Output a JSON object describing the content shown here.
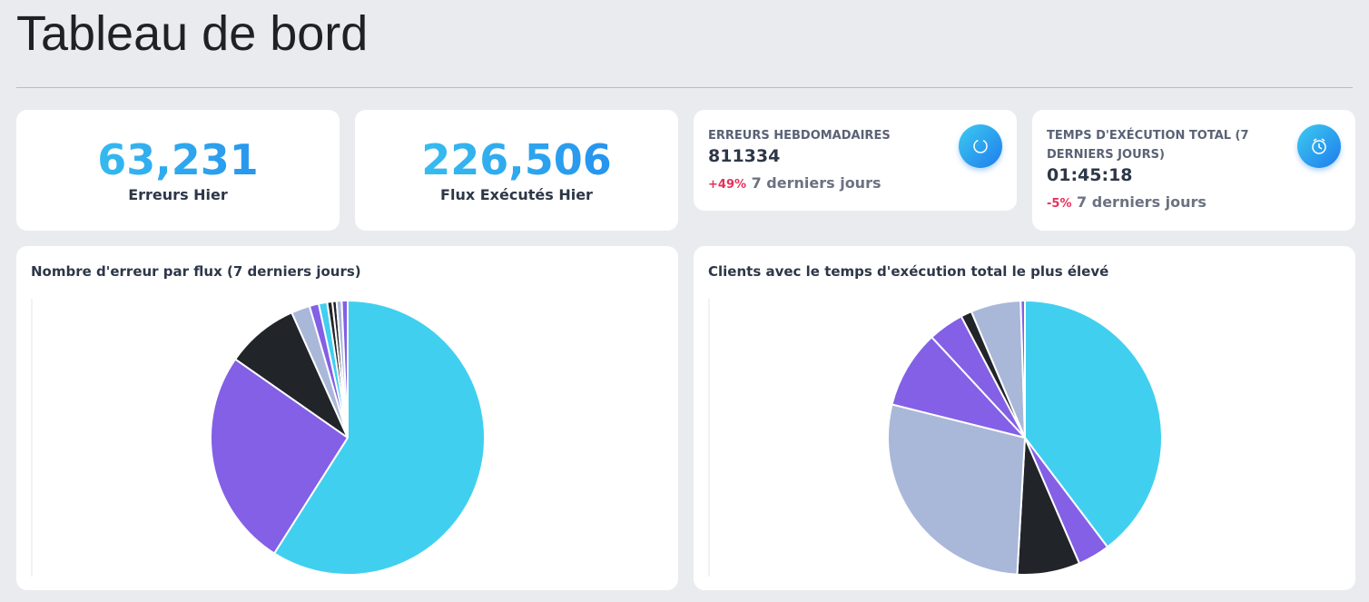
{
  "header": {
    "title": "Tableau de bord"
  },
  "stats": [
    {
      "value": "63,231",
      "label": "Erreurs Hier"
    },
    {
      "value": "226,506",
      "label": "Flux Exécutés Hier"
    }
  ],
  "kpis": [
    {
      "title": "ERREURS HEBDOMADAIRES",
      "value": "811334",
      "change": "+49%",
      "period": "7 derniers jours"
    },
    {
      "title": "TEMPS D'EXÉCUTION TOTAL (7 DERNIERS JOURS)",
      "value": "01:45:18",
      "change": "-5%",
      "period": "7 derniers jours"
    }
  ],
  "chart_data": [
    {
      "type": "pie",
      "title": "Nombre d'erreur par flux (7 derniers jours)",
      "values": [
        59,
        25.7,
        8.6,
        2.2,
        1.1,
        1.0,
        0.6,
        0.5,
        0.6,
        0.7
      ],
      "colors": [
        "#41cff0",
        "#8360e6",
        "#212429",
        "#a9b7d9",
        "#8360e6",
        "#41cff0",
        "#212429",
        "#212429",
        "#a9b7d9",
        "#8360e6"
      ]
    },
    {
      "type": "pie",
      "title": "Clients avec le temps d'exécution total le plus élevé",
      "values": [
        39.7,
        3.8,
        7.4,
        28,
        9.2,
        4.2,
        1.3,
        5.9,
        0.5
      ],
      "colors": [
        "#41cff0",
        "#8360e6",
        "#212429",
        "#a9b7d9",
        "#8360e6",
        "#8360e6",
        "#212429",
        "#a9b7d9",
        "#8360e6"
      ]
    }
  ]
}
